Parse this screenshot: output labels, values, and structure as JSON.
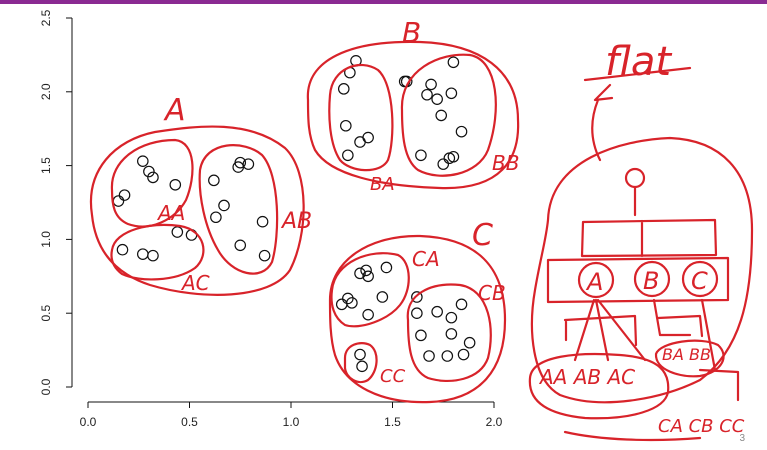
{
  "chart_data": {
    "type": "scatter",
    "title": "",
    "xlabel": "",
    "ylabel": "",
    "xlim": [
      0,
      2.0
    ],
    "ylim": [
      0,
      2.5
    ],
    "x_ticks": [
      "0.0",
      "0.5",
      "1.0",
      "1.5",
      "2.0"
    ],
    "y_ticks": [
      "0.0",
      "0.5",
      "1.0",
      "1.5",
      "2.0",
      "2.5"
    ],
    "points": [
      {
        "x": 0.15,
        "y": 1.26
      },
      {
        "x": 0.18,
        "y": 1.3
      },
      {
        "x": 0.27,
        "y": 1.53
      },
      {
        "x": 0.3,
        "y": 1.46
      },
      {
        "x": 0.32,
        "y": 1.42
      },
      {
        "x": 0.43,
        "y": 1.37
      },
      {
        "x": 0.62,
        "y": 1.4
      },
      {
        "x": 0.74,
        "y": 1.49
      },
      {
        "x": 0.75,
        "y": 1.52
      },
      {
        "x": 0.79,
        "y": 1.51
      },
      {
        "x": 0.67,
        "y": 1.23
      },
      {
        "x": 0.63,
        "y": 1.15
      },
      {
        "x": 0.86,
        "y": 1.12
      },
      {
        "x": 0.75,
        "y": 0.96
      },
      {
        "x": 0.87,
        "y": 0.89
      },
      {
        "x": 0.17,
        "y": 0.93
      },
      {
        "x": 0.27,
        "y": 0.9
      },
      {
        "x": 0.32,
        "y": 0.89
      },
      {
        "x": 0.44,
        "y": 1.05
      },
      {
        "x": 0.51,
        "y": 1.03
      },
      {
        "x": 1.32,
        "y": 2.21
      },
      {
        "x": 1.29,
        "y": 2.13
      },
      {
        "x": 1.26,
        "y": 2.02
      },
      {
        "x": 1.27,
        "y": 1.77
      },
      {
        "x": 1.38,
        "y": 1.69
      },
      {
        "x": 1.34,
        "y": 1.66
      },
      {
        "x": 1.28,
        "y": 1.57
      },
      {
        "x": 1.57,
        "y": 2.07
      },
      {
        "x": 1.56,
        "y": 2.07
      },
      {
        "x": 1.69,
        "y": 2.05
      },
      {
        "x": 1.67,
        "y": 1.98
      },
      {
        "x": 1.72,
        "y": 1.95
      },
      {
        "x": 1.8,
        "y": 2.2
      },
      {
        "x": 1.79,
        "y": 1.99
      },
      {
        "x": 1.74,
        "y": 1.84
      },
      {
        "x": 1.84,
        "y": 1.73
      },
      {
        "x": 1.64,
        "y": 1.57
      },
      {
        "x": 1.75,
        "y": 1.51
      },
      {
        "x": 1.78,
        "y": 1.55
      },
      {
        "x": 1.8,
        "y": 1.56
      },
      {
        "x": 1.34,
        "y": 0.77
      },
      {
        "x": 1.37,
        "y": 0.79
      },
      {
        "x": 1.38,
        "y": 0.75
      },
      {
        "x": 1.47,
        "y": 0.81
      },
      {
        "x": 1.28,
        "y": 0.6
      },
      {
        "x": 1.3,
        "y": 0.57
      },
      {
        "x": 1.25,
        "y": 0.56
      },
      {
        "x": 1.45,
        "y": 0.61
      },
      {
        "x": 1.38,
        "y": 0.49
      },
      {
        "x": 1.34,
        "y": 0.22
      },
      {
        "x": 1.35,
        "y": 0.14
      },
      {
        "x": 1.62,
        "y": 0.61
      },
      {
        "x": 1.62,
        "y": 0.5
      },
      {
        "x": 1.72,
        "y": 0.51
      },
      {
        "x": 1.79,
        "y": 0.47
      },
      {
        "x": 1.84,
        "y": 0.56
      },
      {
        "x": 1.64,
        "y": 0.35
      },
      {
        "x": 1.79,
        "y": 0.36
      },
      {
        "x": 1.68,
        "y": 0.21
      },
      {
        "x": 1.77,
        "y": 0.21
      },
      {
        "x": 1.85,
        "y": 0.22
      },
      {
        "x": 1.88,
        "y": 0.3
      }
    ]
  },
  "annotations": {
    "A": "A",
    "AA": "AA",
    "AB": "AB",
    "AC": "AC",
    "B": "B",
    "BA": "BA",
    "BB": "BB",
    "C": "C",
    "CA": "CA",
    "CB": "CB",
    "CC": "CC",
    "flat": "flat",
    "tree_node_a": "A",
    "tree_node_b": "B",
    "tree_node_c": "C",
    "tree_leaves_left": "AA AB AC",
    "tree_leaves_b": "BA BB",
    "tree_leaves_c": "CA CB CC"
  },
  "page_indicator": "3",
  "colors": {
    "ink": "#d8232a",
    "topbar": "#8a2a92",
    "axis": "#111111"
  }
}
